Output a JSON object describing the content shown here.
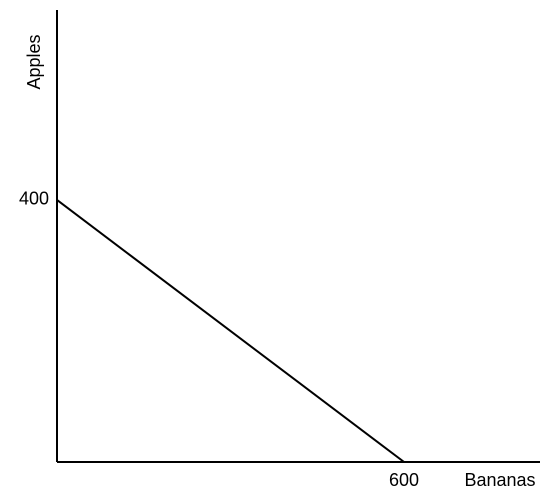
{
  "chart_data": {
    "type": "line",
    "x_label": "Bananas",
    "y_label": "Apples",
    "x": [
      0,
      600
    ],
    "series": [
      {
        "color": "#000000",
        "values": [
          400,
          0
        ]
      }
    ],
    "xlim": [
      0,
      835
    ],
    "ylim": [
      0,
      690
    ],
    "xticks": [
      600
    ],
    "yticks": [
      400
    ]
  }
}
